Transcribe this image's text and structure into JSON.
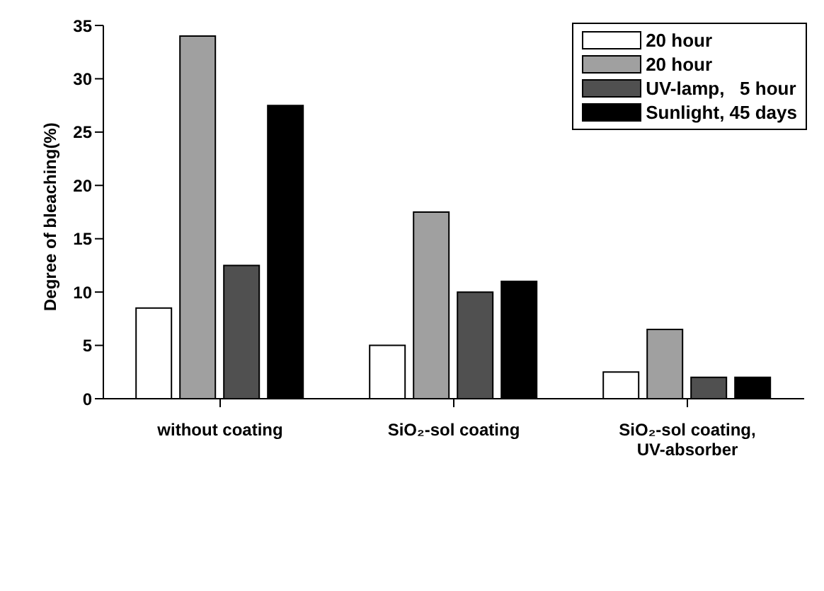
{
  "chart_data": {
    "type": "bar",
    "ylabel": "Degree of bleaching(%)",
    "categories": [
      "without coating",
      "SiO₂-sol coating",
      "SiO₂-sol coating, UV-absorber"
    ],
    "series": [
      {
        "name": "20 hour",
        "color": "#ffffff",
        "values": [
          8.5,
          5,
          2.5
        ]
      },
      {
        "name": "20 hour",
        "color": "#a0a0a0",
        "values": [
          34,
          17.5,
          6.5
        ]
      },
      {
        "name": "UV-lamp,   5 hour",
        "color": "#505050",
        "values": [
          12.5,
          10,
          2
        ]
      },
      {
        "name": "Sunlight, 45 days",
        "color": "#000000",
        "values": [
          27.5,
          11,
          2
        ]
      }
    ],
    "ylim": [
      0,
      35
    ],
    "yticks": [
      0,
      5,
      10,
      15,
      20,
      25,
      30,
      35
    ],
    "grid": false,
    "legend": "top right"
  }
}
